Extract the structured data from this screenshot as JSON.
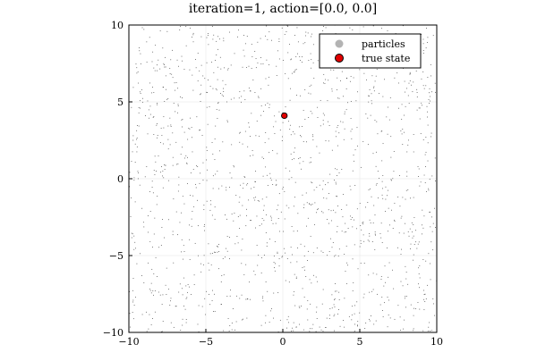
{
  "chart_data": {
    "type": "scatter",
    "title": "iteration=1, action=[0.0, 0.0]",
    "xlabel": "",
    "ylabel": "",
    "xlim": [
      -10,
      10
    ],
    "ylim": [
      -10,
      10
    ],
    "x_ticks": [
      -10,
      -5,
      0,
      5,
      10
    ],
    "y_ticks": [
      -10,
      -5,
      0,
      5,
      10
    ],
    "x_tick_labels": [
      "−10",
      "−5",
      "0",
      "5",
      "10"
    ],
    "y_tick_labels": [
      "−10",
      "−5",
      "0",
      "5",
      "10"
    ],
    "grid": true,
    "legend_position": "top-right",
    "series": [
      {
        "name": "particles",
        "kind": "uniform-random-cloud",
        "count": 1500,
        "range_x": [
          -10,
          10
        ],
        "range_y": [
          -10,
          10
        ],
        "color": "#333333",
        "legend_color": "#b3b3b3"
      },
      {
        "name": "true state",
        "points": [
          {
            "x": 0.1,
            "y": 4.1
          }
        ],
        "color": "#e10000",
        "edge_color": "#000000"
      }
    ]
  }
}
